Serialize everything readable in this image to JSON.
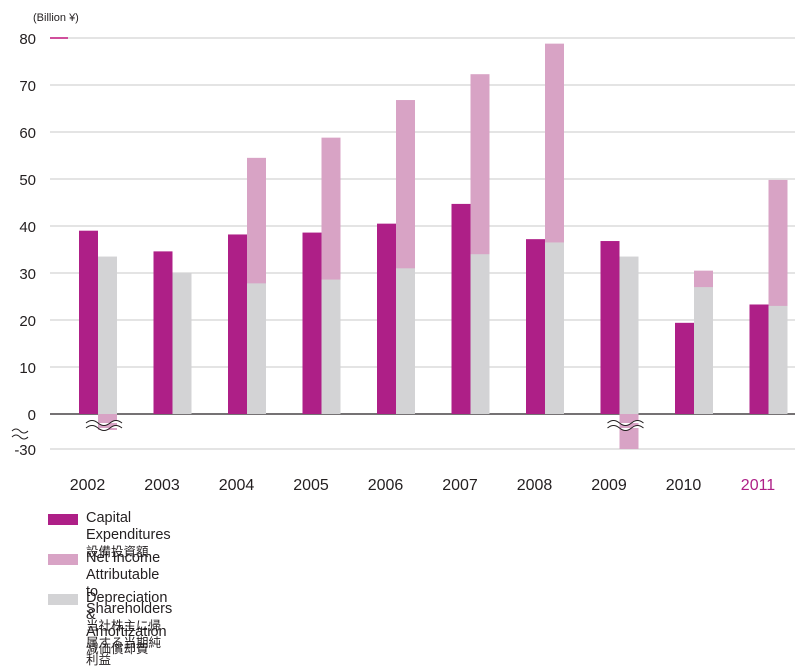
{
  "chart_data": {
    "type": "bar",
    "unit_label": "(Billion ¥)",
    "categories": [
      "2002",
      "2003",
      "2004",
      "2005",
      "2006",
      "2007",
      "2008",
      "2009",
      "2010",
      "2011"
    ],
    "highlight_category": "2011",
    "y_ticks": [
      "80",
      "70",
      "60",
      "50",
      "40",
      "30",
      "20",
      "10",
      "0",
      "-30"
    ],
    "ylim": [
      0,
      80
    ],
    "axis_break": "between 0 and -30",
    "grid": true,
    "legend_position": "bottom-left",
    "series": [
      {
        "name": "Capital Expenditures",
        "name_jp": "設備投資額",
        "color": "#ae1f87",
        "values": [
          39.0,
          34.6,
          38.2,
          38.6,
          40.5,
          44.7,
          37.2,
          36.8,
          19.4,
          23.3
        ]
      },
      {
        "name": "Depreciation & Amortization",
        "name_jp": "減価償却費",
        "color": "#d3d3d5",
        "values": [
          33.5,
          30.0,
          27.8,
          28.6,
          31.0,
          34.0,
          36.5,
          33.5,
          27.0,
          23.0
        ]
      },
      {
        "name": "Net Income Attributable to Shareholders",
        "name_jp": "当社株主に帰属する当期純利益",
        "color": "#d8a3c5",
        "values": [
          -5,
          null,
          54.5,
          58.8,
          66.8,
          72.3,
          78.8,
          -30,
          30.5,
          49.8
        ]
      }
    ],
    "legend_order": [
      0,
      2,
      1
    ]
  },
  "colors": {
    "highlight_text": "#ae1f87",
    "grid": "#c8c8c8",
    "axis": "#231f20",
    "marker": "#c1157b"
  }
}
